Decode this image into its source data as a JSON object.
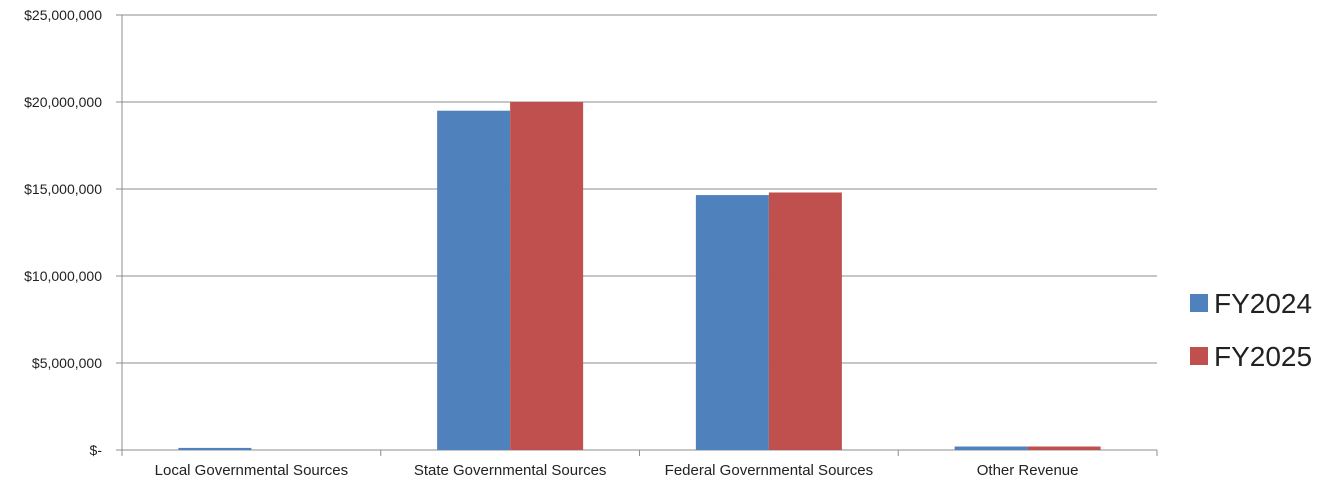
{
  "chart_data": {
    "type": "bar",
    "title": "",
    "xlabel": "",
    "ylabel": "",
    "categories": [
      "Local Governmental Sources",
      "State Governmental Sources",
      "Federal Governmental Sources",
      "Other Revenue"
    ],
    "series": [
      {
        "name": "FY2024",
        "color": "#4F81BD",
        "values": [
          120000,
          19500000,
          14650000,
          200000
        ]
      },
      {
        "name": "FY2025",
        "color": "#C0504D",
        "values": [
          0,
          20000000,
          14800000,
          200000
        ]
      }
    ],
    "ylim": [
      0,
      25000000
    ],
    "yticks": [
      0,
      5000000,
      10000000,
      15000000,
      20000000,
      25000000
    ],
    "ytick_labels": [
      "$-",
      "$5,000,000",
      "$10,000,000",
      "$15,000,000",
      "$20,000,000",
      "$25,000,000"
    ],
    "grid": true,
    "legend_position": "right"
  }
}
